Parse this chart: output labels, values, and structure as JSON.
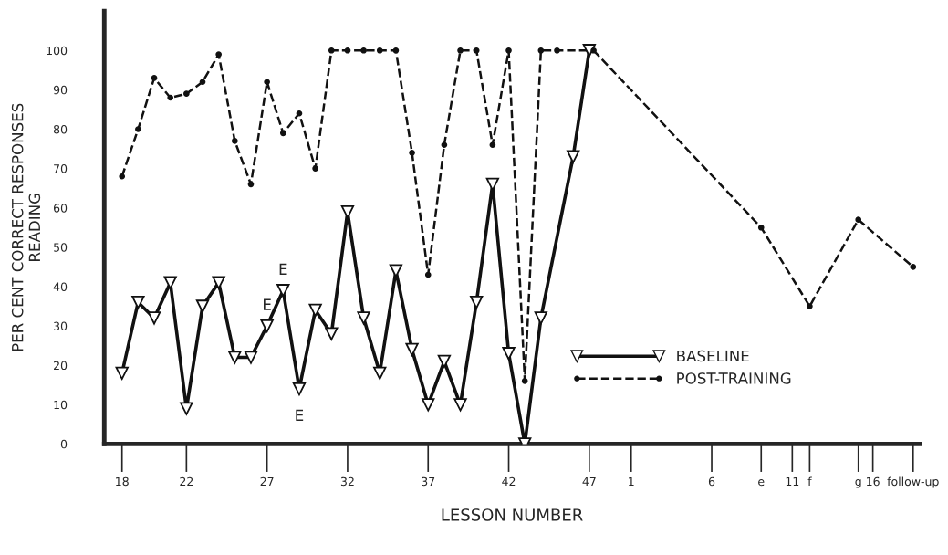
{
  "chart_data": {
    "type": "line",
    "xlabel": "LESSON NUMBER",
    "ylabel": "PER CENT CORRECT RESPONSES\nREADING",
    "xlim": [
      16.9,
      67.5
    ],
    "ylim": [
      0,
      110
    ],
    "xticks": [
      18,
      22,
      27,
      32,
      37,
      42,
      47
    ],
    "x2lim": [
      -31.7,
      18.9
    ],
    "x2ticks": [
      1,
      6,
      {
        "value": 9.07,
        "label": "e"
      },
      11,
      {
        "value": 12.08,
        "label": "f"
      },
      {
        "value": 15.1,
        "label": "g"
      },
      16,
      {
        "value": 18.5,
        "label": "follow-up"
      }
    ],
    "yticks": [
      0,
      10,
      20,
      30,
      40,
      50,
      60,
      70,
      80,
      90,
      100
    ],
    "grid": false,
    "legend": "bottom right",
    "series": [
      {
        "name": "BASELINE",
        "color": "#111111",
        "marker": "triangle",
        "line_style": "solid",
        "x": [
          18,
          19,
          20,
          21,
          22,
          23,
          24,
          25,
          26,
          27,
          28,
          29,
          30,
          31,
          32,
          33,
          34,
          35,
          36,
          37,
          38,
          39,
          40,
          41,
          42,
          43,
          44,
          46,
          47
        ],
        "values": [
          18,
          36,
          32,
          41,
          9,
          35,
          41,
          22,
          22,
          30,
          39,
          14,
          34,
          28,
          59,
          32,
          18,
          44,
          24,
          10,
          21,
          10,
          36,
          66,
          23,
          0,
          32,
          73,
          100
        ]
      },
      {
        "name": "POST-TRAINING",
        "color": "#111111",
        "marker": "circle",
        "line_style": "dashed",
        "x": [
          18,
          19,
          20,
          21,
          22,
          23,
          24,
          25,
          26,
          27,
          28,
          29,
          30,
          31,
          32,
          33,
          34,
          35,
          36,
          37,
          38,
          39,
          40,
          41,
          42,
          43,
          44,
          45,
          47
        ],
        "values": [
          68,
          80,
          93,
          88,
          89,
          92,
          99,
          77,
          66,
          92,
          79,
          84,
          70,
          100,
          100,
          100,
          100,
          100,
          74,
          43,
          76,
          100,
          100,
          76,
          100,
          16,
          100,
          100,
          100
        ]
      },
      {
        "color": "#111111",
        "marker": "circle",
        "line_style": "dashed",
        "axis": "x2",
        "x": [
          -1.33,
          9.07,
          12.08,
          15.1,
          18.5
        ],
        "values": [
          100,
          55,
          35,
          57,
          45
        ]
      }
    ],
    "annotations": [
      {
        "text": "E",
        "x": 27,
        "y": 30
      },
      {
        "text": "E",
        "x": 28,
        "y": 39
      },
      {
        "text": "E",
        "x": 29,
        "y": 14
      }
    ]
  }
}
